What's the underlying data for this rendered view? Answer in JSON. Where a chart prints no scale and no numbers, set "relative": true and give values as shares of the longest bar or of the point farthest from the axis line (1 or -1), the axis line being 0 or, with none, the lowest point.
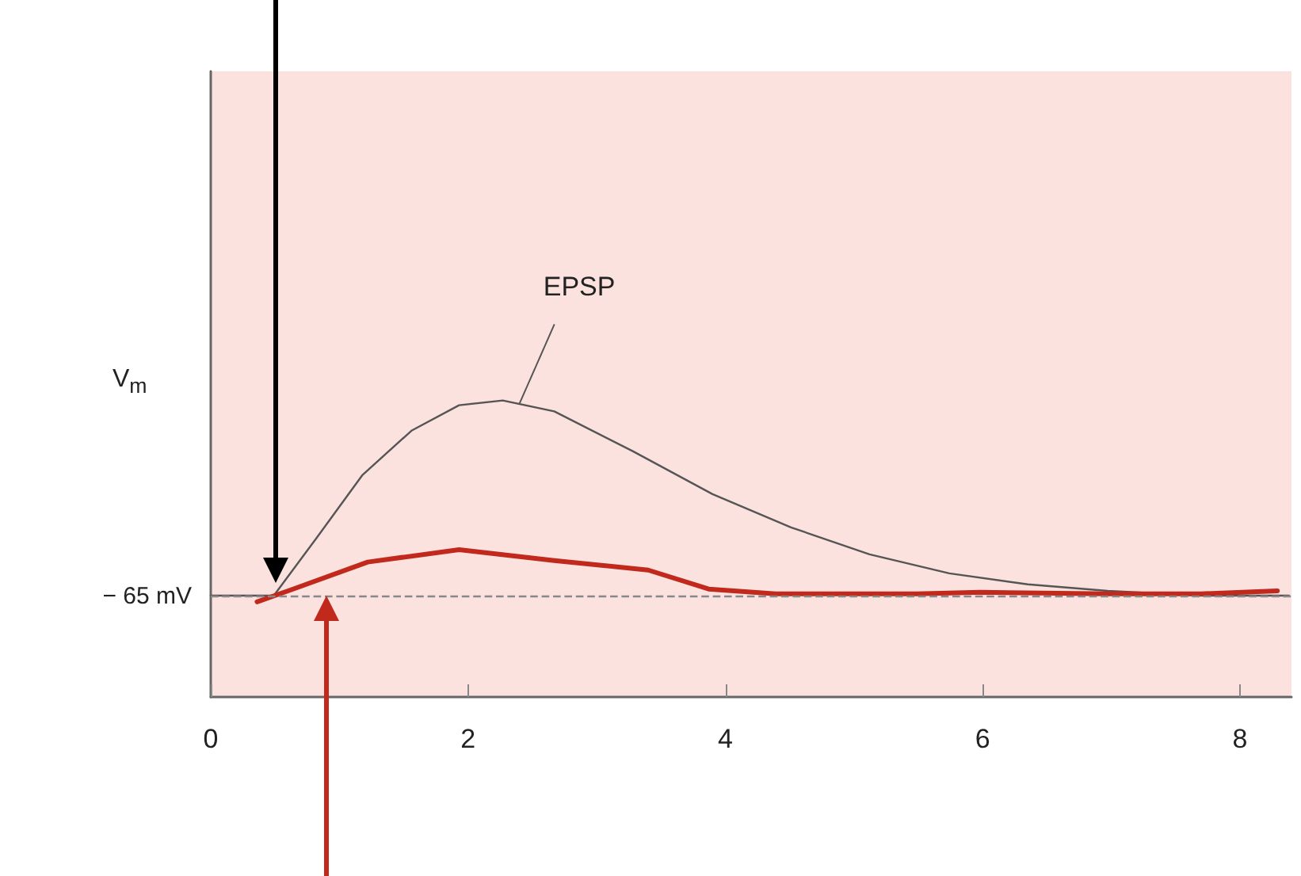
{
  "chart_data": {
    "type": "line",
    "relative": true,
    "ylabel": "V$_{m}$",
    "xlim": [
      0,
      8.4
    ],
    "xticks": [
      0,
      2,
      4,
      6,
      8
    ],
    "grid": false,
    "marker": "none",
    "tick_labels": "x",
    "series": [
      {
        "color": "#555555",
        "x": [
          0,
          0.49,
          0.82,
          1.18,
          1.56,
          1.93,
          2.27,
          2.67,
          3.28,
          3.9,
          4.51,
          5.12,
          5.74,
          6.35,
          6.97,
          7.7,
          8.38
        ],
        "values": [
          0.342,
          0.342,
          0.535,
          0.749,
          0.898,
          0.984,
          1.0,
          0.963,
          0.829,
          0.684,
          0.572,
          0.481,
          0.417,
          0.38,
          0.358,
          0.342,
          0.342
        ]
      },
      {
        "color": "#c0291c",
        "x": [
          0.36,
          0.64,
          1.22,
          1.93,
          2.67,
          3.4,
          3.87,
          4.39,
          5.49,
          5.98,
          6.97,
          7.7,
          8.29
        ],
        "values": [
          0.321,
          0.364,
          0.455,
          0.497,
          0.46,
          0.428,
          0.364,
          0.348,
          0.348,
          0.353,
          0.348,
          0.348,
          0.358
        ]
      }
    ],
    "ref_lines": [
      {
        "axis": "y",
        "value": 0.342,
        "label": "− 65 mV",
        "color": "#888888",
        "line_style": "dashed"
      }
    ],
    "annotations": [
      {
        "text": "EPSP",
        "x": 2.4,
        "y": 0.99
      }
    ]
  }
}
